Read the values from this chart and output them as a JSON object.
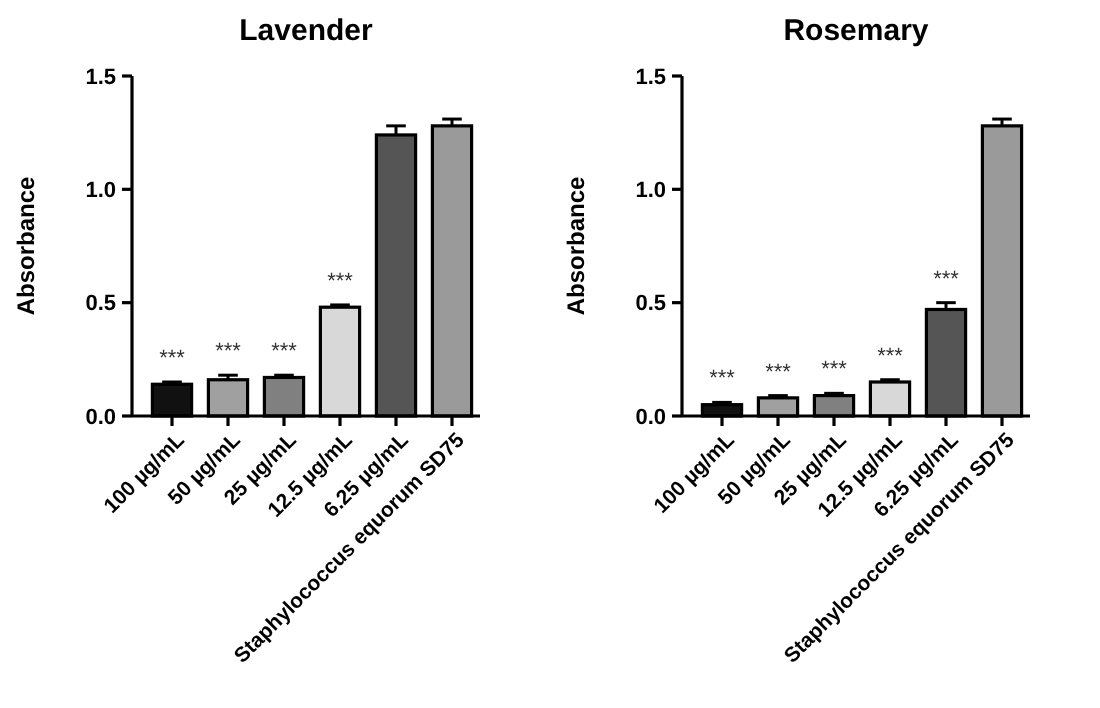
{
  "chart_data": [
    {
      "type": "bar",
      "title": "Lavender",
      "ylabel": "Absorbance",
      "categories": [
        "100 µg/mL",
        "50 µg/mL",
        "25 µg/mL",
        "12.5 µg/mL",
        "6.25 µg/mL",
        "Staphylococcus equorum SD75"
      ],
      "values": [
        0.14,
        0.16,
        0.17,
        0.48,
        1.24,
        1.28
      ],
      "errors": [
        0.01,
        0.02,
        0.01,
        0.01,
        0.04,
        0.03
      ],
      "colors": [
        "#111111",
        "#a0a0a0",
        "#808080",
        "#d8d8d8",
        "#555555",
        "#9a9a9a"
      ],
      "ylim": [
        0,
        1.5
      ],
      "yticks": [
        {
          "value": 0,
          "label": "0.0"
        },
        {
          "value": 0.5,
          "label": "0.5"
        },
        {
          "value": 1,
          "label": "1.0"
        },
        {
          "value": 1.5,
          "label": "1.5"
        }
      ],
      "annotations": [
        "***",
        "***",
        "***",
        "***"
      ]
    },
    {
      "type": "bar",
      "title": "Rosemary",
      "ylabel": "Absorbance",
      "categories": [
        "100 µg/mL",
        "50 µg/mL",
        "25 µg/mL",
        "12.5 µg/mL",
        "6.25 µg/mL",
        "Staphylococcus equorum SD75"
      ],
      "values": [
        0.05,
        0.08,
        0.09,
        0.15,
        0.47,
        1.28
      ],
      "errors": [
        0.01,
        0.01,
        0.01,
        0.01,
        0.03,
        0.03
      ],
      "colors": [
        "#111111",
        "#a0a0a0",
        "#808080",
        "#d8d8d8",
        "#555555",
        "#9a9a9a"
      ],
      "ylim": [
        0,
        1.5
      ],
      "yticks": [
        {
          "value": 0,
          "label": "0.0"
        },
        {
          "value": 0.5,
          "label": "0.5"
        },
        {
          "value": 1,
          "label": "1.0"
        },
        {
          "value": 1.5,
          "label": "1.5"
        }
      ],
      "annotations": [
        "***",
        "***",
        "***",
        "***",
        "***"
      ]
    }
  ]
}
